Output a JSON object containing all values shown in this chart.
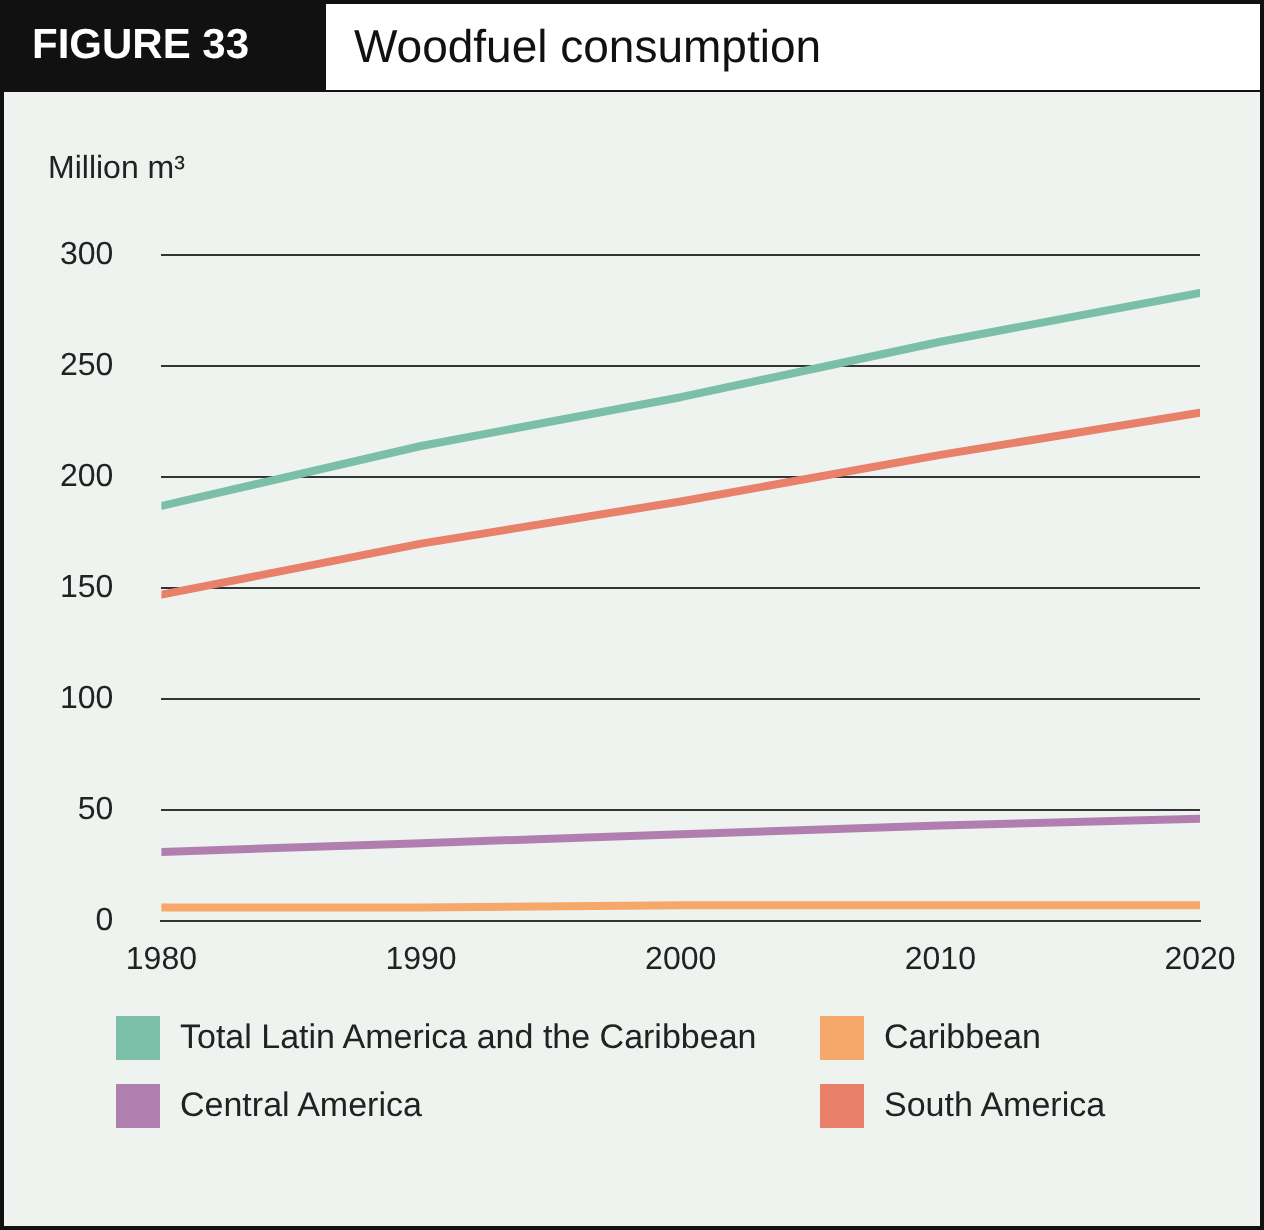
{
  "chart_data": {
    "type": "line",
    "title": "Woodfuel consumption",
    "ylabel": "Million m³",
    "annotations": [
      "FIGURE 33"
    ],
    "x": [
      1980,
      1990,
      2000,
      2010,
      2020
    ],
    "xlim": [
      1980,
      2020
    ],
    "xticks": [
      1980,
      1990,
      2000,
      2010,
      2020
    ],
    "ylim": [
      0,
      300
    ],
    "yticks": [
      0,
      50,
      100,
      150,
      200,
      250,
      300
    ],
    "grid": "y",
    "legend": "bottom",
    "marker": "none",
    "line_style": "solid",
    "series": [
      {
        "name": "Total Latin America and the Caribbean",
        "color": "#7bbfa8",
        "values": [
          187,
          214,
          236,
          261,
          283
        ]
      },
      {
        "name": "Caribbean",
        "color": "#f5a86a",
        "values": [
          6,
          6,
          7,
          7,
          7
        ]
      },
      {
        "name": "Central America",
        "color": "#b07fb0",
        "values": [
          31,
          35,
          39,
          43,
          46
        ]
      },
      {
        "name": "South America",
        "color": "#e8806a",
        "values": [
          147,
          170,
          189,
          210,
          229
        ]
      }
    ]
  }
}
